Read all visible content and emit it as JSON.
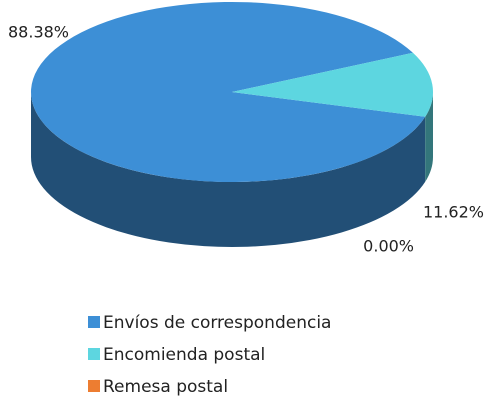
{
  "chart_data": {
    "type": "pie",
    "categories": [
      "Envíos de correspondencia",
      "Encomienda postal",
      "Remesa postal"
    ],
    "values": [
      88.38,
      11.62,
      0.0
    ],
    "value_labels": [
      "88.38%",
      "11.62%",
      "0.00%"
    ],
    "colors": [
      "#3d8fd6",
      "#5dd6e0",
      "#ed7d31"
    ],
    "legend": "bottom"
  }
}
